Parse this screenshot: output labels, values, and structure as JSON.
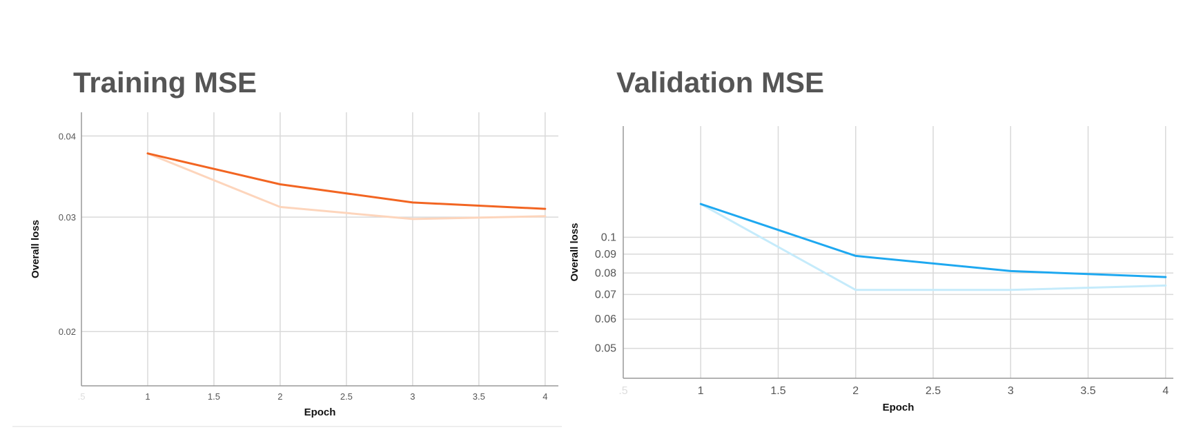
{
  "chart_data": [
    {
      "type": "line",
      "title": "Training MSE",
      "xlabel": "Epoch",
      "ylabel": "Overall loss",
      "yscale": "log",
      "xlim": [
        0.5,
        4.1
      ],
      "ylim": [
        0.0165,
        0.0435
      ],
      "x_ticks": [
        ".5",
        "1",
        "1.5",
        "2",
        "2.5",
        "3",
        "3.5",
        "4"
      ],
      "y_ticks": [
        0.02,
        0.03,
        0.04
      ],
      "y_tick_labels": [
        "0.02",
        "0.03",
        "0.04"
      ],
      "grid": true,
      "series": [
        {
          "color": "#f26522",
          "x": [
            1,
            2,
            3,
            4
          ],
          "values": [
            0.0376,
            0.0337,
            0.0316,
            0.0309
          ]
        },
        {
          "color": "#fdd5bc",
          "x": [
            1,
            2,
            3,
            4
          ],
          "values": [
            0.0376,
            0.0311,
            0.0298,
            0.0301
          ]
        }
      ]
    },
    {
      "type": "line",
      "title": "Validation MSE",
      "xlabel": "Epoch",
      "ylabel": "Overall loss",
      "yscale": "log",
      "xlim": [
        0.5,
        4.05
      ],
      "ylim": [
        0.0415,
        0.2
      ],
      "x_ticks": [
        ".5",
        "1",
        "1.5",
        "2",
        "2.5",
        "3",
        "3.5",
        "4"
      ],
      "y_ticks": [
        0.05,
        0.06,
        0.07,
        0.08,
        0.09,
        0.1
      ],
      "y_tick_labels": [
        "0.05",
        "0.06",
        "0.07",
        "0.08",
        "0.09",
        "0.1"
      ],
      "grid": true,
      "series": [
        {
          "color": "#1ea8f0",
          "x": [
            1,
            2,
            3,
            4
          ],
          "values": [
            0.123,
            0.089,
            0.081,
            0.078
          ]
        },
        {
          "color": "#c5ebfb",
          "x": [
            1,
            2,
            3,
            4
          ],
          "values": [
            0.123,
            0.072,
            0.072,
            0.074
          ]
        }
      ]
    }
  ]
}
